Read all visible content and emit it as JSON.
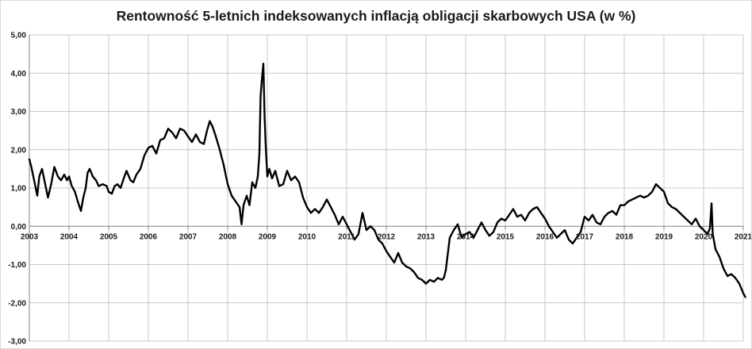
{
  "chart_data": {
    "type": "line",
    "title": "Rentowność 5-letnich indeksowanych inflacją obligacji skarbowych USA (w %)",
    "xlabel": "",
    "ylabel": "",
    "xlim": [
      2003,
      2021
    ],
    "ylim": [
      -3,
      5
    ],
    "y_ticks": [
      "5,00",
      "4,00",
      "3,00",
      "2,00",
      "1,00",
      "0,00",
      "-1,00",
      "-2,00",
      "-3,00"
    ],
    "y_tick_values": [
      5,
      4,
      3,
      2,
      1,
      0,
      -1,
      -2,
      -3
    ],
    "x_ticks": [
      "2003",
      "2004",
      "2005",
      "2006",
      "2007",
      "2008",
      "2009",
      "2010",
      "2011",
      "2012",
      "2013",
      "2014",
      "2015",
      "2016",
      "2017",
      "2018",
      "2019",
      "2020",
      "2021"
    ],
    "x_tick_values": [
      2003,
      2004,
      2005,
      2006,
      2007,
      2008,
      2009,
      2010,
      2011,
      2012,
      2013,
      2014,
      2015,
      2016,
      2017,
      2018,
      2019,
      2020,
      2021
    ],
    "grid": true,
    "legend": "none",
    "line_color": "#000000",
    "series": [
      {
        "x": [
          2003.0,
          2003.05,
          2003.12,
          2003.2,
          2003.25,
          2003.32,
          2003.4,
          2003.47,
          2003.55,
          2003.63,
          2003.72,
          2003.8,
          2003.88,
          2003.95,
          2004.0,
          2004.07,
          2004.15,
          2004.22,
          2004.3,
          2004.36,
          2004.42,
          2004.47,
          2004.52,
          2004.6,
          2004.68,
          2004.75,
          2004.85,
          2004.95,
          2005.0,
          2005.08,
          2005.15,
          2005.22,
          2005.3,
          2005.38,
          2005.45,
          2005.55,
          2005.62,
          2005.7,
          2005.8,
          2005.9,
          2006.0,
          2006.1,
          2006.2,
          2006.3,
          2006.4,
          2006.5,
          2006.6,
          2006.7,
          2006.8,
          2006.9,
          2007.0,
          2007.1,
          2007.2,
          2007.3,
          2007.4,
          2007.48,
          2007.55,
          2007.62,
          2007.7,
          2007.8,
          2007.9,
          2008.0,
          2008.1,
          2008.2,
          2008.3,
          2008.35,
          2008.4,
          2008.48,
          2008.55,
          2008.62,
          2008.7,
          2008.76,
          2008.8,
          2008.83,
          2008.86,
          2008.9,
          2008.93,
          2008.96,
          2009.0,
          2009.05,
          2009.12,
          2009.2,
          2009.3,
          2009.4,
          2009.5,
          2009.6,
          2009.7,
          2009.8,
          2009.9,
          2010.0,
          2010.1,
          2010.2,
          2010.3,
          2010.4,
          2010.5,
          2010.6,
          2010.7,
          2010.8,
          2010.9,
          2011.0,
          2011.1,
          2011.2,
          2011.3,
          2011.4,
          2011.5,
          2011.6,
          2011.7,
          2011.8,
          2011.9,
          2012.0,
          2012.1,
          2012.2,
          2012.3,
          2012.4,
          2012.5,
          2012.6,
          2012.7,
          2012.8,
          2012.9,
          2013.0,
          2013.1,
          2013.2,
          2013.3,
          2013.4,
          2013.45,
          2013.5,
          2013.6,
          2013.7,
          2013.8,
          2013.9,
          2014.0,
          2014.1,
          2014.2,
          2014.3,
          2014.4,
          2014.5,
          2014.6,
          2014.7,
          2014.8,
          2014.9,
          2015.0,
          2015.1,
          2015.2,
          2015.3,
          2015.4,
          2015.5,
          2015.6,
          2015.7,
          2015.8,
          2015.9,
          2016.0,
          2016.1,
          2016.2,
          2016.3,
          2016.4,
          2016.5,
          2016.6,
          2016.7,
          2016.8,
          2016.9,
          2017.0,
          2017.1,
          2017.2,
          2017.3,
          2017.4,
          2017.5,
          2017.6,
          2017.7,
          2017.8,
          2017.9,
          2018.0,
          2018.1,
          2018.2,
          2018.3,
          2018.4,
          2018.5,
          2018.6,
          2018.7,
          2018.8,
          2018.9,
          2019.0,
          2019.1,
          2019.2,
          2019.3,
          2019.4,
          2019.5,
          2019.6,
          2019.7,
          2019.8,
          2019.9,
          2020.0,
          2020.1,
          2020.16,
          2020.2,
          2020.23,
          2020.3,
          2020.4,
          2020.5,
          2020.6,
          2020.7,
          2020.8,
          2020.9,
          2021.0,
          2021.05
        ],
        "y": [
          1.75,
          1.55,
          1.2,
          0.8,
          1.3,
          1.5,
          1.1,
          0.75,
          1.1,
          1.55,
          1.3,
          1.2,
          1.35,
          1.2,
          1.3,
          1.05,
          0.9,
          0.65,
          0.4,
          0.75,
          1.0,
          1.4,
          1.5,
          1.3,
          1.2,
          1.05,
          1.1,
          1.05,
          0.9,
          0.85,
          1.05,
          1.1,
          1.0,
          1.25,
          1.45,
          1.2,
          1.15,
          1.35,
          1.5,
          1.85,
          2.05,
          2.1,
          1.9,
          2.25,
          2.3,
          2.55,
          2.45,
          2.3,
          2.55,
          2.5,
          2.35,
          2.2,
          2.4,
          2.2,
          2.15,
          2.5,
          2.75,
          2.6,
          2.35,
          2.0,
          1.6,
          1.1,
          0.8,
          0.65,
          0.5,
          0.05,
          0.55,
          0.8,
          0.55,
          1.15,
          1.0,
          1.3,
          1.9,
          3.4,
          3.8,
          4.25,
          2.9,
          2.1,
          1.3,
          1.5,
          1.25,
          1.45,
          1.05,
          1.1,
          1.45,
          1.2,
          1.3,
          1.15,
          0.75,
          0.5,
          0.35,
          0.45,
          0.35,
          0.5,
          0.7,
          0.5,
          0.3,
          0.05,
          0.25,
          0.05,
          -0.15,
          -0.35,
          -0.2,
          0.35,
          -0.1,
          0.0,
          -0.1,
          -0.35,
          -0.45,
          -0.65,
          -0.8,
          -0.95,
          -0.7,
          -0.95,
          -1.05,
          -1.1,
          -1.2,
          -1.35,
          -1.4,
          -1.5,
          -1.4,
          -1.45,
          -1.35,
          -1.4,
          -1.35,
          -1.15,
          -0.3,
          -0.1,
          0.05,
          -0.3,
          -0.2,
          -0.15,
          -0.3,
          -0.1,
          0.1,
          -0.1,
          -0.25,
          -0.15,
          0.1,
          0.2,
          0.15,
          0.3,
          0.45,
          0.25,
          0.3,
          0.15,
          0.35,
          0.45,
          0.5,
          0.35,
          0.2,
          0.0,
          -0.15,
          -0.3,
          -0.2,
          -0.1,
          -0.35,
          -0.45,
          -0.3,
          -0.15,
          0.25,
          0.15,
          0.3,
          0.1,
          0.05,
          0.25,
          0.35,
          0.4,
          0.3,
          0.55,
          0.55,
          0.65,
          0.7,
          0.75,
          0.8,
          0.75,
          0.8,
          0.9,
          1.1,
          1.0,
          0.9,
          0.6,
          0.5,
          0.45,
          0.35,
          0.25,
          0.15,
          0.05,
          0.2,
          0.0,
          -0.1,
          -0.2,
          -0.05,
          0.6,
          -0.2,
          -0.6,
          -0.8,
          -1.1,
          -1.3,
          -1.25,
          -1.35,
          -1.5,
          -1.75,
          -1.85
        ]
      }
    ]
  }
}
